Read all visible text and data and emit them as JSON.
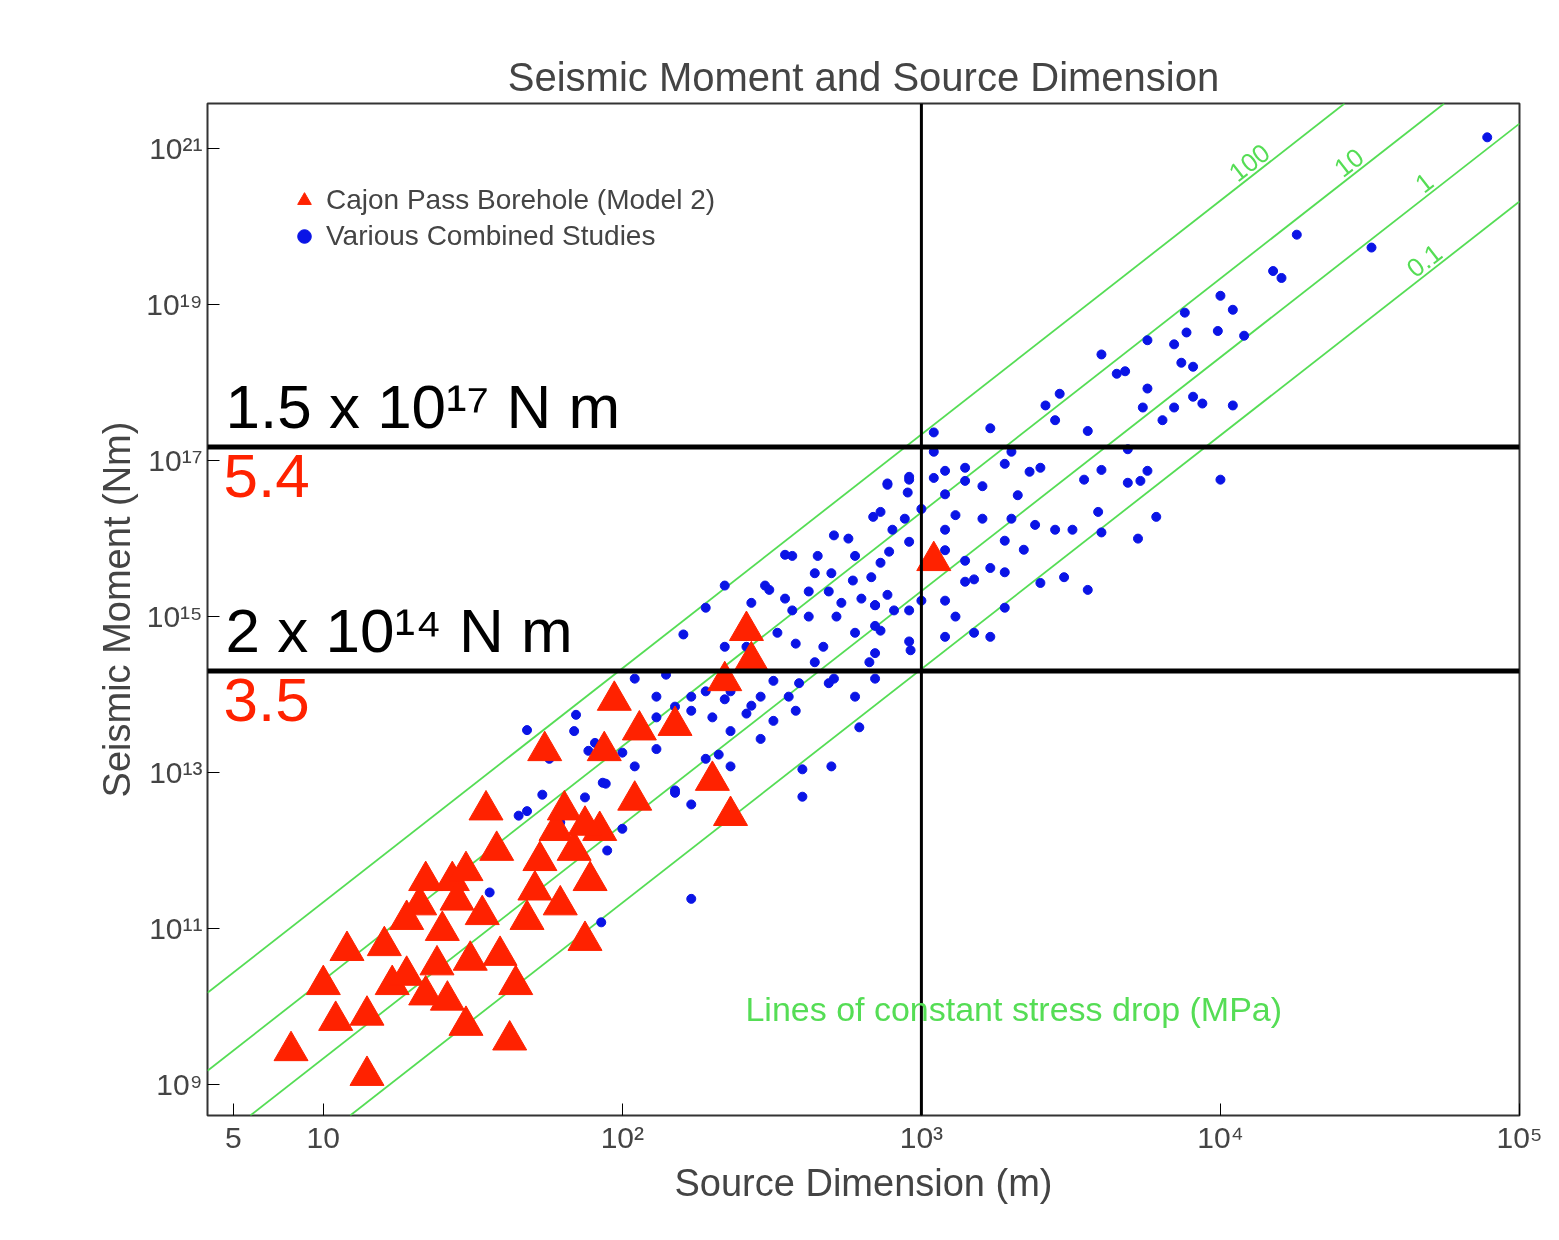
{
  "chart_data": {
    "type": "scatter",
    "title": "Seismic Moment and Source Dimension",
    "xlabel": "Source Dimension (m)",
    "ylabel": "Seismic Moment (Nm)",
    "log": "xy",
    "xlim": [
      4.1,
      100000
    ],
    "ylim": [
      400000000,
      3.8e+21
    ],
    "xticks": [
      {
        "value": 5,
        "label": "5"
      },
      {
        "value": 10,
        "label": "10"
      },
      {
        "value": 100,
        "label": "10²"
      },
      {
        "value": 1000,
        "label": "10³"
      },
      {
        "value": 10000,
        "label": "10⁴"
      },
      {
        "value": 100000,
        "label": "10⁵"
      }
    ],
    "yticks": [
      {
        "value": 1000000000.0,
        "label": "10⁹"
      },
      {
        "value": 100000000000.0,
        "label": "10¹¹"
      },
      {
        "value": 10000000000000.0,
        "label": "10¹³"
      },
      {
        "value": 1000000000000000.0,
        "label": "10¹⁵"
      },
      {
        "value": 1e+17,
        "label": "10¹⁷"
      },
      {
        "value": 1e+19,
        "label": "10¹⁹"
      },
      {
        "value": 1e+21,
        "label": "10²¹"
      }
    ],
    "legend": "top left",
    "series": [
      {
        "name": "Cajon Pass Borehole (Model 2)",
        "marker": "triangle",
        "color": "#ff2200",
        "x": [
          7.8,
          14,
          10,
          12,
          11,
          14,
          16,
          17,
          19,
          21,
          22,
          24,
          25,
          27,
          28,
          30,
          31,
          34,
          35,
          38,
          39,
          42,
          44,
          48,
          51,
          53,
          55,
          60,
          62,
          64,
          69,
          75,
          78,
          84,
          87,
          94,
          110,
          114,
          150,
          200,
          220,
          230,
          260,
          270,
          1100,
          30,
          22,
          19,
          75,
          26
        ],
        "values": [
          2700000000.0,
          1300000000.0,
          19000000000.0,
          52000000000.0,
          6600000000.0,
          7700000000.0,
          60000000000.0,
          19000000000.0,
          25000000000.0,
          200000000000.0,
          14000000000.0,
          34000000000.0,
          94000000000.0,
          410000000000.0,
          230000000000.0,
          5700000000.0,
          39000000000.0,
          150000000000.0,
          3300000000000.0,
          1000000000000.0,
          45000000000.0,
          3700000000.0,
          19000000000.0,
          130000000000.0,
          310000000000.0,
          740000000000.0,
          19000000000000.0,
          1800000000000.0,
          200000000000.0,
          3300000000000.0,
          1000000000000.0,
          70000000000.0,
          410000000000.0,
          1800000000000.0,
          19000000000000.0,
          84000000000000.0,
          4400000000000.0,
          35000000000000.0,
          40000000000000.0,
          7900000000000.0,
          150000000000000.0,
          2800000000000.0,
          660000000000000.0,
          270000000000000.0,
          5200000000000000.0,
          550000000000.0,
          410000000000.0,
          130000000000.0,
          2100000000000.0,
          12000000000.0
        ]
      },
      {
        "name": "Various Combined Studies",
        "marker": "circle",
        "color": "#0a14e6",
        "x": [
          78000,
          18000,
          32000,
          15000,
          16000,
          10000,
          11000,
          7600,
          7700,
          7000,
          5700,
          9800,
          12000,
          4000,
          4500,
          4800,
          7400,
          8100,
          5700,
          2900,
          2600,
          5500,
          6400,
          7000,
          8100,
          8700,
          11000,
          2800,
          1700,
          3600,
          1100,
          1100,
          2000,
          1900,
          4900,
          4000,
          5700,
          2300,
          2500,
          3500,
          4900,
          5400,
          10000,
          1200,
          1400,
          1100,
          1400,
          1600,
          910,
          770,
          1200,
          2100,
          1000,
          730,
          880,
          1300,
          1600,
          2000,
          2400,
          2800,
          3200,
          3900,
          4000,
          6100,
          5300,
          1200,
          800,
          1900,
          2200,
          780,
          1200,
          1400,
          1700,
          1900,
          1400,
          1500,
          2500,
          3000,
          3600,
          1000,
          1200,
          770,
          700,
          810,
          910,
          1300,
          1900,
          730,
          1500,
          1700,
          1200,
          910,
          48,
          70,
          69,
          86,
          100,
          77,
          100,
          130,
          150,
          170,
          160,
          190,
          220,
          270,
          300,
          350,
          370,
          450,
          510,
          570,
          690,
          770,
          910,
          900,
          910,
          600,
          730,
          440,
          500,
          590,
          680,
          420,
          350,
          310,
          370,
          490,
          540,
          630,
          700,
          420,
          520,
          700,
          600,
          470,
          380,
          330,
          260,
          220,
          700,
          920,
          440,
          670,
          510,
          700,
          360,
          290,
          220,
          170,
          130,
          110,
          140,
          190,
          390,
          600,
          490,
          380,
          320,
          260,
          200,
          150,
          130,
          290,
          230,
          210,
          620,
          400,
          500,
          400,
          88,
          48,
          54,
          57,
          62,
          75,
          81,
          110,
          150,
          89,
          45,
          36,
          170,
          85,
          230,
          190,
          170,
          270,
          320,
          230
        ],
        "values": [
          1.4e+21,
          7.9e+19,
          5.4e+19,
          2.7e+19,
          2.2e+19,
          1.3e+19,
          8.6e+18,
          7.9e+18,
          4.4e+18,
          3.1e+18,
          3.5e+18,
          4.6e+18,
          4e+18,
          2.3e+18,
          1.3e+18,
          1.4e+18,
          1.8e+18,
          1.6e+18,
          8.4e+17,
          7.2e+17,
          5.1e+17,
          4.8e+17,
          3.3e+17,
          4.8e+17,
          6.6e+17,
          5.4e+17,
          5.1e+17,
          3.3e+17,
          2.6e+17,
          2.4e+17,
          2.3e+17,
          1.3e+17,
          1.3e+17,
          9.1e+16,
          1.4e+17,
          7.6e+16,
          7.4e+16,
          7.2e+16,
          8.1e+16,
          5.7e+16,
          5.2e+16,
          5.5e+16,
          5.7e+16,
          7.4e+16,
          8.1e+16,
          6e+16,
          5.5e+16,
          4.7e+16,
          5.7e+16,
          4.9e+16,
          3.7e+16,
          3.6e+16,
          2.4e+16,
          2.2e+16,
          1.8e+16,
          2e+16,
          1.8e+16,
          1.8e+16,
          1.5e+16,
          1.3e+16,
          1.3e+16,
          2.2e+16,
          1.2e+16,
          1.9e+16,
          1e+16,
          1.3e+16,
          1.3e+16,
          9400000000000000.0,
          7200000000000000.0,
          6800000000000000.0,
          7100000000000000.0,
          5200000000000000.0,
          4200000000000000.0,
          3700000000000000.0,
          2800000000000000.0,
          3000000000000000.0,
          2700000000000000.0,
          3200000000000000.0,
          2200000000000000.0,
          1600000000000000.0,
          1600000000000000.0,
          1900000000000000.0,
          1400000000000000.0,
          1200000000000000.0,
          1200000000000000.0,
          1000000000000000.0,
          1300000000000000.0,
          660000000000000.0,
          620000000000000.0,
          550000000000000.0,
          550000000000000.0,
          480000000000000.0,
          35000000000000.0,
          55000000000000.0,
          34000000000000.0,
          7400000000000.0,
          1900000000000.0,
          19000000000000.0,
          18000000000000.0,
          20000000000000.0,
          5900000000000.0,
          3900000000000.0,
          590000000000000.0,
          1300000000000000.0,
          2500000000000000.0,
          1500000000000000.0,
          2500000000000000.0,
          6200000000000000.0,
          6000000000000000.0,
          6000000000000000.0,
          1.1e+16,
          1e+16,
          1.9e+16,
          5.1e+16,
          6.2e+16,
          3.9e+16,
          9100000000000000.0,
          6000000000000000.0,
          4900000000000000.0,
          3600000000000000.0,
          3600000000000000.0,
          2900000000000000.0,
          3200000000000000.0,
          2100000000000000.0,
          1700000000000000.0,
          2200000000000000.0,
          1200000000000000.0,
          2100000000000000.0,
          1500000000000000.0,
          1700000000000000.0,
          1400000000000000.0,
          1000000000000000.0,
          1000000000000000.0,
          760000000000000.0,
          620000000000000.0,
          410000000000000.0,
          450000000000000.0,
          620000000000000.0,
          410000000000000.0,
          410000000000000.0,
          340000000000000.0,
          370000000000000.0,
          260000000000000.0,
          260000000000000.0,
          160000000000000.0,
          160000000000000.0,
          94000000000000.0,
          94000000000000.0,
          87000000000000.0,
          94000000000000.0,
          94000000000000.0,
          160000000000000.0,
          180000000000000.0,
          110000000000000.0,
          140000000000000.0,
          94000000000000.0,
          140000000000000.0,
          62000000000000.0,
          46000000000000.0,
          57000000000000.0,
          51000000000000.0,
          70000000000000.0,
          51000000000000.0,
          27000000000000.0,
          34000000000000.0,
          17000000000000.0,
          38000000000000.0,
          11000000000000.0,
          12000000000000.0,
          4900000000000.0,
          7200000000000.0,
          3200000000000.0,
          5200000000000.0,
          15000000000000.0,
          2300000000000.0,
          4800000000000.0,
          24000000000000.0,
          12000000000000.0,
          5500000000000.0,
          1000000000000.0,
          2800000000000.0,
          290000000000.0,
          240000000000.0,
          120000000000.0,
          12000000000000.0,
          15000000000000.0,
          62000000000000.0,
          72000000000000.0,
          150000000000000.0,
          110000000000000.0
        ]
      },
      {
        "name": "100",
        "type": "line",
        "color": "#55dd55",
        "x": [
          4.1,
          26000
        ],
        "values": [
          15000000000.0,
          3.8e+21
        ]
      },
      {
        "name": "10",
        "type": "line",
        "color": "#55dd55",
        "x": [
          4.1,
          56000
        ],
        "values": [
          1500000000.0,
          3.8e+21
        ]
      },
      {
        "name": "1",
        "type": "line",
        "color": "#55dd55",
        "x": [
          5.7,
          100000
        ],
        "values": [
          400000000,
          2.1e+21
        ]
      },
      {
        "name": "0.1",
        "type": "line",
        "color": "#55dd55",
        "x": [
          12.3,
          100000
        ],
        "values": [
          400000000,
          2.1e+20
        ]
      }
    ],
    "ref_lines": [
      {
        "axis": "y",
        "value": 1.5e+17,
        "label": "1.5 x 10¹⁷ N m"
      },
      {
        "axis": "y",
        "value": 200000000000000.0,
        "label": "2 x 10¹⁴ N m"
      },
      {
        "axis": "x",
        "value": 1000,
        "label": null
      }
    ],
    "annotations": [
      "5.4",
      "3.5",
      "Lines of constant stress drop (MPa)"
    ]
  }
}
